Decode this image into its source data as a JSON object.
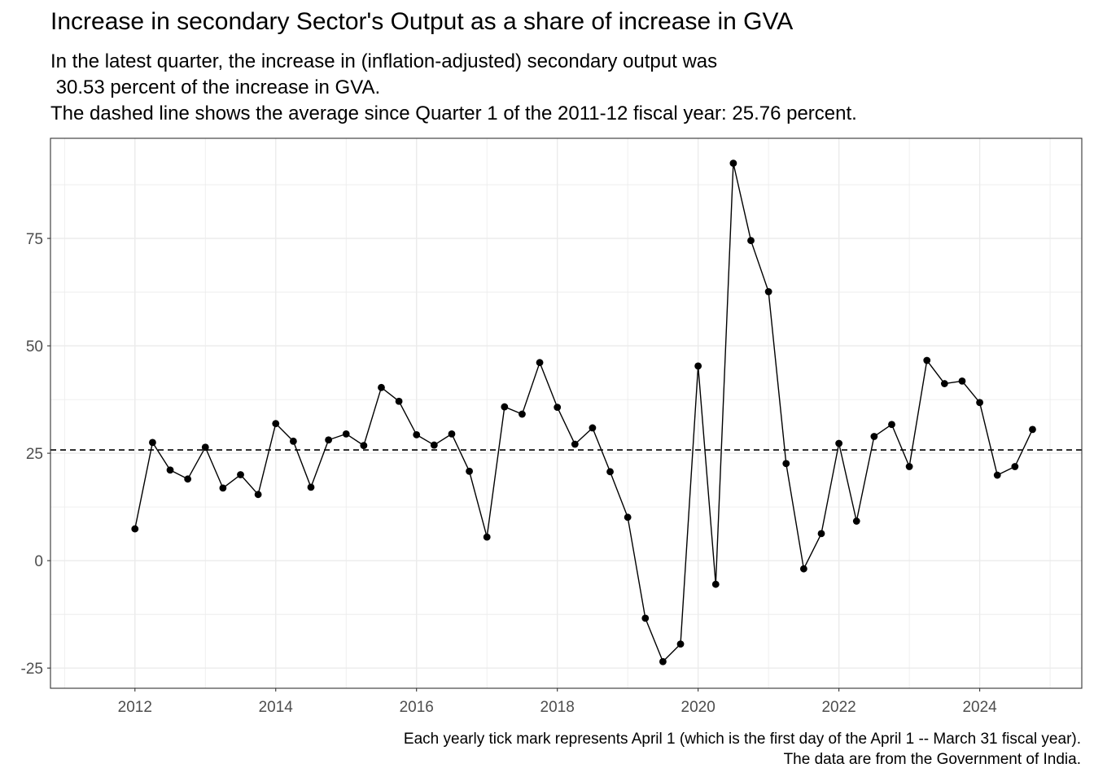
{
  "chart_data": {
    "type": "line",
    "title": "Increase in secondary Sector's Output as a share of increase in GVA",
    "subtitle": [
      "In the latest quarter, the increase in (inflation-adjusted) secondary output was",
      " 30.53 percent of the increase in GVA.",
      "The dashed line shows the average since Quarter 1 of the 2011-12 fiscal year: 25.76 percent."
    ],
    "caption": [
      "Each yearly tick mark represents April 1 (which is the first day of the April 1 -- March 31 fiscal year).",
      "The data are from the Government of India."
    ],
    "xlabel": "",
    "ylabel": "",
    "xlim": [
      2010.8,
      2025.45
    ],
    "ylim": [
      -29.7,
      98.3
    ],
    "x_ticks": [
      2012,
      2014,
      2016,
      2018,
      2020,
      2022,
      2024
    ],
    "x_tick_labels": [
      "2012",
      "2014",
      "2016",
      "2018",
      "2020",
      "2022",
      "2024"
    ],
    "y_ticks": [
      -25,
      0,
      25,
      50,
      75
    ],
    "y_tick_labels": [
      "-25",
      "0",
      "25",
      "50",
      "75"
    ],
    "grid": true,
    "reference_line": {
      "y": 25.76,
      "style": "dashed"
    },
    "series": [
      {
        "x": [
          2012.0,
          2012.25,
          2012.5,
          2012.75,
          2013.0,
          2013.25,
          2013.5,
          2013.75,
          2014.0,
          2014.25,
          2014.5,
          2014.75,
          2015.0,
          2015.25,
          2015.5,
          2015.75,
          2016.0,
          2016.25,
          2016.5,
          2016.75,
          2017.0,
          2017.25,
          2017.5,
          2017.75,
          2018.0,
          2018.25,
          2018.5,
          2018.75,
          2019.0,
          2019.25,
          2019.5,
          2019.75,
          2020.0,
          2020.25,
          2020.5,
          2020.75,
          2021.0,
          2021.25,
          2021.5,
          2021.75,
          2022.0,
          2022.25,
          2022.5,
          2022.75,
          2023.0,
          2023.25,
          2023.5,
          2023.75,
          2024.0,
          2024.25,
          2024.5,
          2024.75
        ],
        "values": [
          7.4,
          27.5,
          21.1,
          19.0,
          26.4,
          16.9,
          20.0,
          15.4,
          31.9,
          27.8,
          17.1,
          28.1,
          29.5,
          26.8,
          40.3,
          37.1,
          29.3,
          26.9,
          29.5,
          20.8,
          5.5,
          35.8,
          34.1,
          46.1,
          35.7,
          27.1,
          30.9,
          20.7,
          10.1,
          -13.4,
          -23.5,
          -19.4,
          45.3,
          -5.5,
          92.5,
          74.5,
          62.6,
          22.6,
          -1.9,
          6.3,
          27.3,
          9.2,
          28.9,
          31.7,
          21.9,
          46.6,
          41.2,
          41.8,
          36.8,
          19.9,
          21.9,
          30.53
        ]
      }
    ],
    "colors": {
      "line": "#000000",
      "point": "#000000",
      "grid": "#ebebeb",
      "panel_border": "#333333",
      "tick_text": "#4d4d4d"
    }
  }
}
